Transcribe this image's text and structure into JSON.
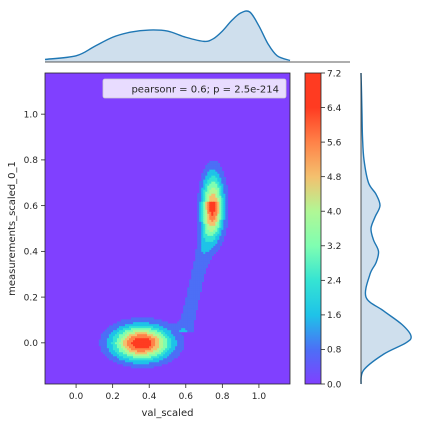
{
  "chart_data": {
    "type": "contour",
    "kind": "jointplot-kde",
    "xlabel": "val_scaled",
    "ylabel": "measurements_scaled_0_1",
    "xlim": [
      -0.17,
      1.17
    ],
    "ylim": [
      -0.18,
      1.18
    ],
    "x_ticks": [
      "0.0",
      "0.2",
      "0.4",
      "0.6",
      "0.8",
      "1.0"
    ],
    "y_ticks": [
      "0.0",
      "0.2",
      "0.4",
      "0.6",
      "0.8",
      "1.0"
    ],
    "annotation": "pearsonr = 0.6; p = 2.5e-214",
    "legend_position": "top-right",
    "colormap": "rainbow",
    "colorbar": {
      "ticks": [
        "0.0",
        "0.8",
        "1.6",
        "2.4",
        "3.2",
        "4.0",
        "4.8",
        "5.6",
        "6.4",
        "7.2"
      ],
      "levels": [
        0.0,
        0.8,
        1.6,
        2.4,
        3.2,
        4.0,
        4.8,
        5.6,
        6.4,
        7.2
      ]
    },
    "density_peaks": [
      {
        "x": 0.36,
        "y": 0.0,
        "density": 7.2
      },
      {
        "x": 0.75,
        "y": 0.6,
        "density": 5.6
      }
    ],
    "marginal_x": {
      "x": [
        -0.17,
        0.0,
        0.1,
        0.2,
        0.3,
        0.4,
        0.5,
        0.6,
        0.7,
        0.75,
        0.8,
        0.85,
        0.9,
        0.95,
        1.0,
        1.05,
        1.1,
        1.17
      ],
      "density": [
        0.05,
        0.12,
        0.3,
        0.48,
        0.58,
        0.62,
        0.6,
        0.48,
        0.4,
        0.45,
        0.6,
        0.8,
        0.95,
        0.97,
        0.7,
        0.35,
        0.12,
        0.03
      ]
    },
    "marginal_y": {
      "y": [
        -0.18,
        -0.12,
        -0.05,
        0.0,
        0.03,
        0.08,
        0.14,
        0.2,
        0.3,
        0.35,
        0.4,
        0.45,
        0.5,
        0.55,
        0.6,
        0.65,
        0.7,
        0.8,
        0.9,
        1.0,
        1.1,
        1.18
      ],
      "density": [
        0.0,
        0.05,
        0.45,
        0.9,
        1.0,
        0.82,
        0.45,
        0.1,
        0.18,
        0.3,
        0.35,
        0.25,
        0.2,
        0.28,
        0.38,
        0.3,
        0.15,
        0.06,
        0.03,
        0.02,
        0.01,
        0.0
      ]
    },
    "colors": {
      "levels": [
        "#8040ff",
        "#4c6ff6",
        "#1ec3e8",
        "#35e4d3",
        "#7ffeb1",
        "#b1f795",
        "#f4c06e",
        "#ff8248",
        "#ff3b21"
      ],
      "marginal_line": "#1f77b4",
      "marginal_fill": "#c7d9ea"
    }
  }
}
